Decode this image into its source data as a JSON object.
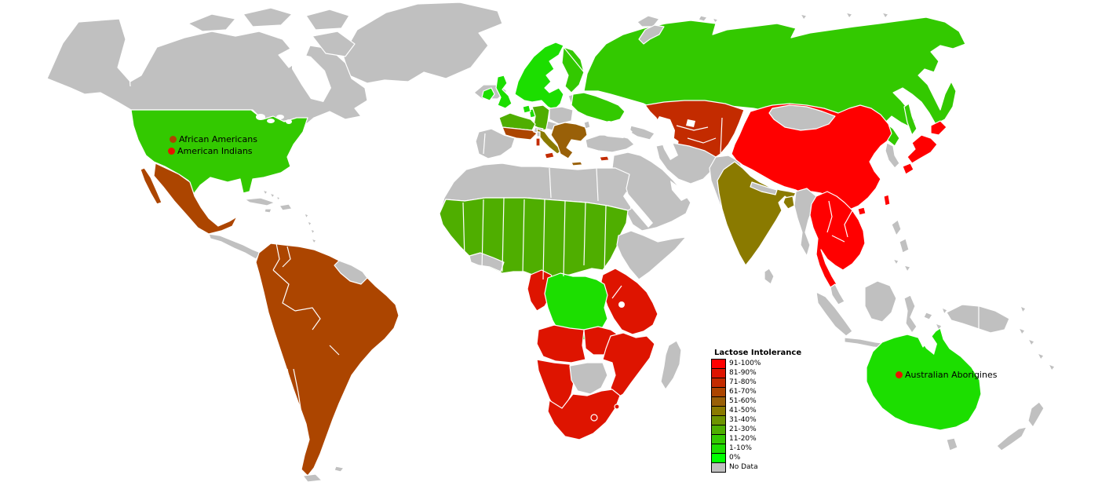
{
  "legend": {
    "title": "Lactose Intolerance",
    "entries": [
      {
        "key": "p91",
        "label": "91-100%",
        "color": "#FF0000"
      },
      {
        "key": "p81",
        "label": "81-90%",
        "color": "#DE1400"
      },
      {
        "key": "p71",
        "label": "71-80%",
        "color": "#C32B00"
      },
      {
        "key": "p61",
        "label": "61-70%",
        "color": "#AC4500"
      },
      {
        "key": "p51",
        "label": "51-60%",
        "color": "#996008"
      },
      {
        "key": "p41",
        "label": "41-50%",
        "color": "#8A7A00"
      },
      {
        "key": "p31",
        "label": "31-40%",
        "color": "#6E9400"
      },
      {
        "key": "p21",
        "label": "21-30%",
        "color": "#4FAE00"
      },
      {
        "key": "p11",
        "label": "11-20%",
        "color": "#33C900"
      },
      {
        "key": "p1",
        "label": "1-10%",
        "color": "#1CDE00"
      },
      {
        "key": "p0",
        "label": "0%",
        "color": "#00FF00"
      },
      {
        "key": "nodata",
        "label": "No Data",
        "color": "#C0C0C0"
      }
    ]
  },
  "annotations": [
    {
      "id": "african-americans",
      "label": "African Americans",
      "dot_color": "#AC4500"
    },
    {
      "id": "american-indians",
      "label": "American Indians",
      "dot_color": "#E81300"
    },
    {
      "id": "australian-aborigines",
      "label": "Australian Aborigines",
      "dot_color": "#E81300"
    }
  ],
  "map": {
    "ocean_color": "#FFFFFF",
    "border_color": "#FFFFFF",
    "regions": [
      {
        "id": "greenland",
        "name": "Greenland",
        "category": "nodata"
      },
      {
        "id": "canada",
        "name": "Canada & Alaska",
        "category": "nodata"
      },
      {
        "id": "canadian-arctic-islands",
        "name": "Canadian Arctic Islands",
        "category": "nodata"
      },
      {
        "id": "iceland",
        "name": "Iceland",
        "category": "nodata"
      },
      {
        "id": "baltic-states",
        "name": "Baltic States",
        "category": "nodata"
      },
      {
        "id": "poland",
        "name": "Poland",
        "category": "nodata"
      },
      {
        "id": "central-europe",
        "name": "Central Europe",
        "category": "nodata"
      },
      {
        "id": "switzerland",
        "name": "Switzerland",
        "category": "nodata"
      },
      {
        "id": "iberia",
        "name": "Spain & Portugal",
        "category": "nodata"
      },
      {
        "id": "corsica",
        "name": "Corsica",
        "category": "nodata"
      },
      {
        "id": "moldova",
        "name": "Moldova",
        "category": "nodata"
      },
      {
        "id": "turkey",
        "name": "Turkey",
        "category": "nodata"
      },
      {
        "id": "caucasus",
        "name": "Caucasus",
        "category": "nodata"
      },
      {
        "id": "arabia",
        "name": "Arabian Peninsula",
        "category": "nodata"
      },
      {
        "id": "iran",
        "name": "Iran",
        "category": "nodata"
      },
      {
        "id": "afghanistan-pakistan",
        "name": "Afghanistan & Pakistan",
        "category": "nodata"
      },
      {
        "id": "central-america",
        "name": "Central America",
        "category": "nodata"
      },
      {
        "id": "caribbean",
        "name": "Caribbean",
        "category": "nodata"
      },
      {
        "id": "guianas",
        "name": "Guianas",
        "category": "nodata"
      },
      {
        "id": "south-atlantic-islands",
        "name": "Tierra del Fuego & Falklands",
        "category": "nodata"
      },
      {
        "id": "north-africa",
        "name": "North Africa",
        "category": "nodata"
      },
      {
        "id": "west-african-coast",
        "name": "Liberia & Ivory Coast",
        "category": "nodata"
      },
      {
        "id": "horn-of-africa",
        "name": "Ethiopia & Somalia",
        "category": "nodata"
      },
      {
        "id": "botswana",
        "name": "Botswana",
        "category": "nodata"
      },
      {
        "id": "madagascar",
        "name": "Madagascar",
        "category": "nodata"
      },
      {
        "id": "mongolia",
        "name": "Mongolia",
        "category": "nodata"
      },
      {
        "id": "korea",
        "name": "Korea",
        "category": "nodata"
      },
      {
        "id": "myanmar",
        "name": "Myanmar",
        "category": "nodata"
      },
      {
        "id": "nepal",
        "name": "Nepal",
        "category": "nodata"
      },
      {
        "id": "sri-lanka",
        "name": "Sri Lanka",
        "category": "nodata"
      },
      {
        "id": "malay-peninsula",
        "name": "Malay Peninsula",
        "category": "nodata"
      },
      {
        "id": "indonesia",
        "name": "Indonesia",
        "category": "nodata"
      },
      {
        "id": "philippines",
        "name": "Philippines",
        "category": "nodata"
      },
      {
        "id": "new-guinea",
        "name": "New Guinea",
        "category": "nodata"
      },
      {
        "id": "pacific-islands",
        "name": "Pacific Islands",
        "category": "nodata"
      },
      {
        "id": "tasmania",
        "name": "Tasmania",
        "category": "nodata"
      },
      {
        "id": "new-zealand",
        "name": "New Zealand",
        "category": "nodata"
      },
      {
        "id": "svalbard",
        "name": "Svalbard",
        "category": "nodata"
      },
      {
        "id": "russian-arctic-islands",
        "name": "Russian Arctic Islands",
        "category": "nodata"
      },
      {
        "id": "china",
        "name": "China",
        "category": "p91"
      },
      {
        "id": "japan",
        "name": "Japan",
        "category": "p91"
      },
      {
        "id": "taiwan",
        "name": "Taiwan",
        "category": "p91"
      },
      {
        "id": "hainan",
        "name": "Hainan",
        "category": "p91"
      },
      {
        "id": "southeast-asia",
        "name": "Thailand, Laos, Cambodia & Vietnam",
        "category": "p91"
      },
      {
        "id": "east-africa",
        "name": "Kenya, Uganda & Tanzania",
        "category": "p81"
      },
      {
        "id": "gabon-congo",
        "name": "Gabon & Congo",
        "category": "p81"
      },
      {
        "id": "angola",
        "name": "Angola",
        "category": "p81"
      },
      {
        "id": "zambia-malawi",
        "name": "Zambia & Malawi",
        "category": "p81"
      },
      {
        "id": "mozambique-zimbabwe",
        "name": "Mozambique & Zimbabwe",
        "category": "p81"
      },
      {
        "id": "namibia",
        "name": "Namibia",
        "category": "p81"
      },
      {
        "id": "south-africa",
        "name": "South Africa",
        "category": "p81"
      },
      {
        "id": "lesotho",
        "name": "Lesotho",
        "category": "p81"
      },
      {
        "id": "swaziland",
        "name": "Swaziland",
        "category": "p81"
      },
      {
        "id": "central-asia",
        "name": "Kazakhstan & Central Asia",
        "category": "p71"
      },
      {
        "id": "sicily",
        "name": "Sicily",
        "category": "p71"
      },
      {
        "id": "sardinia",
        "name": "Sardinia",
        "category": "p71"
      },
      {
        "id": "cyprus",
        "name": "Cyprus",
        "category": "p71"
      },
      {
        "id": "lebanon-israel",
        "name": "Lebanon & Israel",
        "category": "p71"
      },
      {
        "id": "mexico",
        "name": "Mexico",
        "category": "p61"
      },
      {
        "id": "south-america",
        "name": "South America",
        "category": "p61"
      },
      {
        "id": "france-south",
        "name": "Southern France",
        "category": "p61"
      },
      {
        "id": "balkans",
        "name": "Balkans & Greece",
        "category": "p51"
      },
      {
        "id": "crete",
        "name": "Crete",
        "category": "p51"
      },
      {
        "id": "italy",
        "name": "Italy",
        "category": "p41"
      },
      {
        "id": "india",
        "name": "India",
        "category": "p41"
      },
      {
        "id": "bangladesh",
        "name": "Bangladesh",
        "category": "p41"
      },
      {
        "id": "germany",
        "name": "Germany",
        "category": "p21"
      },
      {
        "id": "france-north",
        "name": "Northern France",
        "category": "p21"
      },
      {
        "id": "sahel",
        "name": "West Africa & Sahel",
        "category": "p21"
      },
      {
        "id": "usa",
        "name": "United States",
        "category": "p11"
      },
      {
        "id": "russia",
        "name": "Russia",
        "category": "p11"
      },
      {
        "id": "finland",
        "name": "Finland",
        "category": "p11"
      },
      {
        "id": "ukraine-belarus",
        "name": "Ukraine & Belarus",
        "category": "p11"
      },
      {
        "id": "sakhalin",
        "name": "Sakhalin",
        "category": "p11"
      },
      {
        "id": "scandinavia",
        "name": "Norway & Sweden",
        "category": "p1"
      },
      {
        "id": "denmark",
        "name": "Denmark",
        "category": "p1"
      },
      {
        "id": "uk",
        "name": "United Kingdom",
        "category": "p1"
      },
      {
        "id": "ireland",
        "name": "Ireland",
        "category": "p1"
      },
      {
        "id": "netherlands",
        "name": "Netherlands",
        "category": "p1"
      },
      {
        "id": "australia",
        "name": "Australia",
        "category": "p1"
      },
      {
        "id": "dr-congo",
        "name": "DR Congo",
        "category": "p1"
      }
    ]
  }
}
